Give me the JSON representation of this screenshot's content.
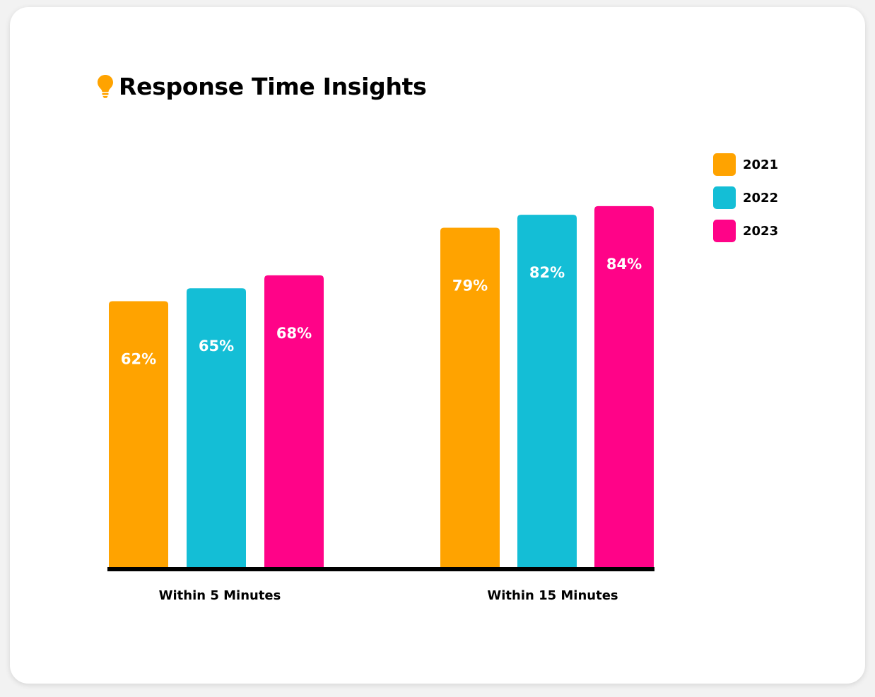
{
  "chart_data": {
    "type": "bar",
    "title": "Response Time Insights",
    "categories": [
      "Within 5 Minutes",
      "Within 15 Minutes"
    ],
    "series": [
      {
        "name": "2021",
        "values": [
          62,
          79
        ],
        "labels": [
          "62%",
          "79%"
        ],
        "color": "#FFA300"
      },
      {
        "name": "2022",
        "values": [
          65,
          82
        ],
        "labels": [
          "65%",
          "82%"
        ],
        "color": "#14BED6"
      },
      {
        "name": "2023",
        "values": [
          68,
          84
        ],
        "labels": [
          "68%",
          "84%"
        ],
        "color": "#FF0388"
      }
    ],
    "xlabel": "",
    "ylabel": "",
    "ylim": [
      0,
      100
    ],
    "grid": false,
    "legend_position": "right"
  },
  "icons": {
    "title_icon": "lightbulb-icon",
    "title_icon_color": "#FFA300"
  }
}
